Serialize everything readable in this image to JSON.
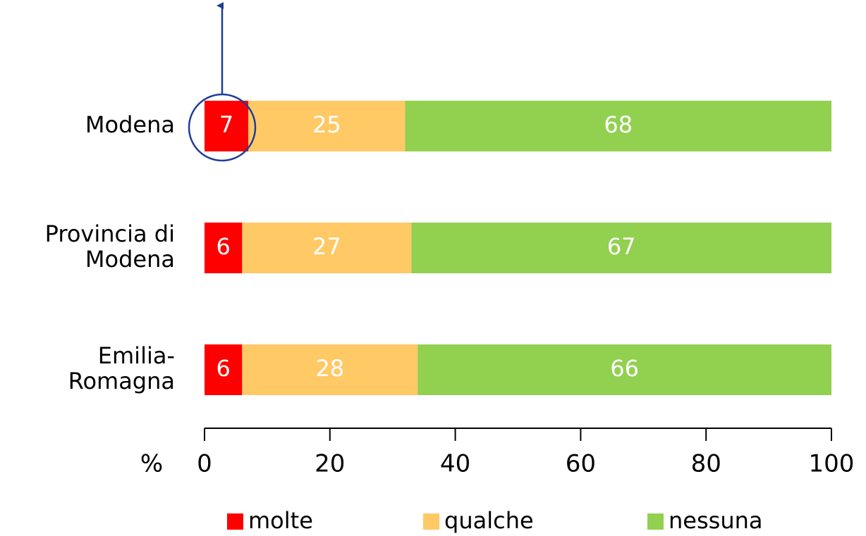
{
  "chart_data": {
    "type": "stacked_barh",
    "categories": [
      "Modena",
      "Provincia di\nModena",
      "Emilia-\nRomagna"
    ],
    "series": [
      {
        "name": "molte",
        "color": "#ff0000",
        "values": [
          7,
          6,
          6
        ]
      },
      {
        "name": "qualche",
        "color": "#ffc966",
        "values": [
          25,
          27,
          28
        ]
      },
      {
        "name": "nessuna",
        "color": "#92d050",
        "values": [
          68,
          67,
          66
        ]
      }
    ],
    "xlabel": "%",
    "xlim": [
      0,
      100
    ],
    "xticks": [
      0,
      20,
      40,
      60,
      80,
      100
    ],
    "legend": "bottom"
  }
}
